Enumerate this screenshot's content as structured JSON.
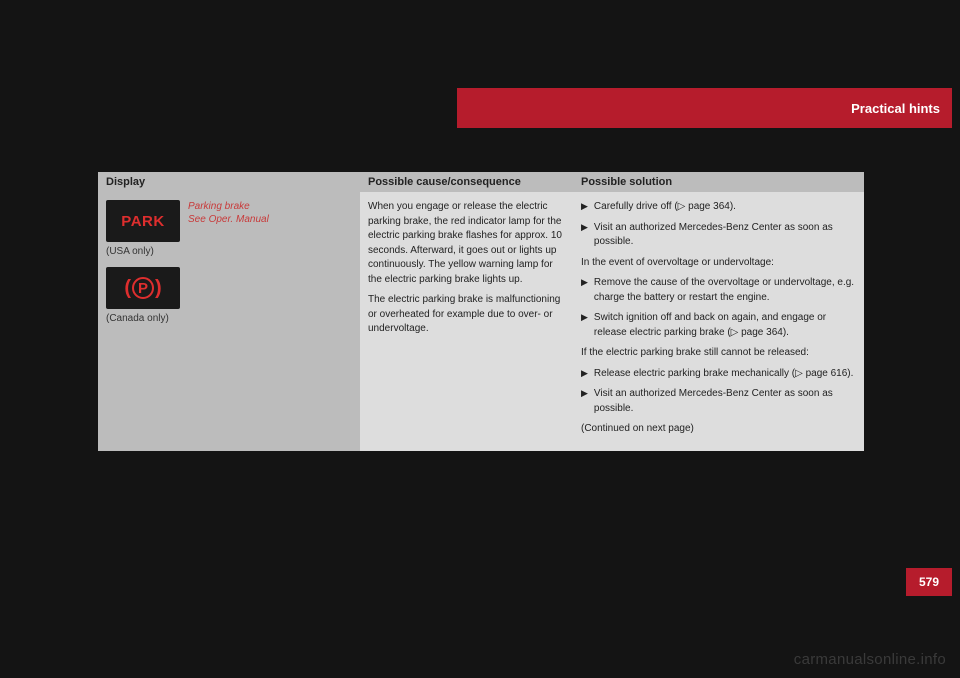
{
  "header": {
    "title": "Practical hints"
  },
  "table": {
    "headers": {
      "c1": "Display",
      "c2": "Possible cause/consequence",
      "c3": "Possible solution"
    },
    "display": {
      "warning_line1": "Parking brake",
      "warning_line2": "See Oper. Manual",
      "icon_park": "PARK",
      "label_usa": "(USA only)",
      "icon_p": "P",
      "label_canada": "(Canada only)"
    },
    "cause": {
      "p1": "When you engage or release the electric parking brake, the red indicator lamp for the electric parking brake flashes for approx. 10 seconds. Afterward, it goes out or lights up continuously. The yellow warning lamp for the electric parking brake lights up.",
      "p2": "The electric parking brake is malfunctioning or overheated for example due to over- or undervoltage."
    },
    "solution": {
      "b1": "Carefully drive off (▷ page 364).",
      "b2": "Visit an authorized Mercedes-Benz Center as soon as possible.",
      "t1": "In the event of overvoltage or undervoltage:",
      "b3": "Remove the cause of the overvoltage or undervoltage, e.g. charge the battery or restart the engine.",
      "b4": "Switch ignition off and back on again, and engage or release electric parking brake (▷ page 364).",
      "t2": "If the electric parking brake still cannot be released:",
      "b5": "Release electric parking brake mechanically (▷ page 616).",
      "b6": "Visit an authorized Mercedes-Benz Center as soon as possible.",
      "cont": "(Continued on next page)"
    }
  },
  "page_number": "579",
  "watermark": "carmanualsonline.info",
  "colors": {
    "brand_red": "#b61c2c",
    "header_gray": "#bcbcbc",
    "body_gray": "#ddd",
    "bg": "#141414",
    "warn_red": "#c83a3a"
  }
}
